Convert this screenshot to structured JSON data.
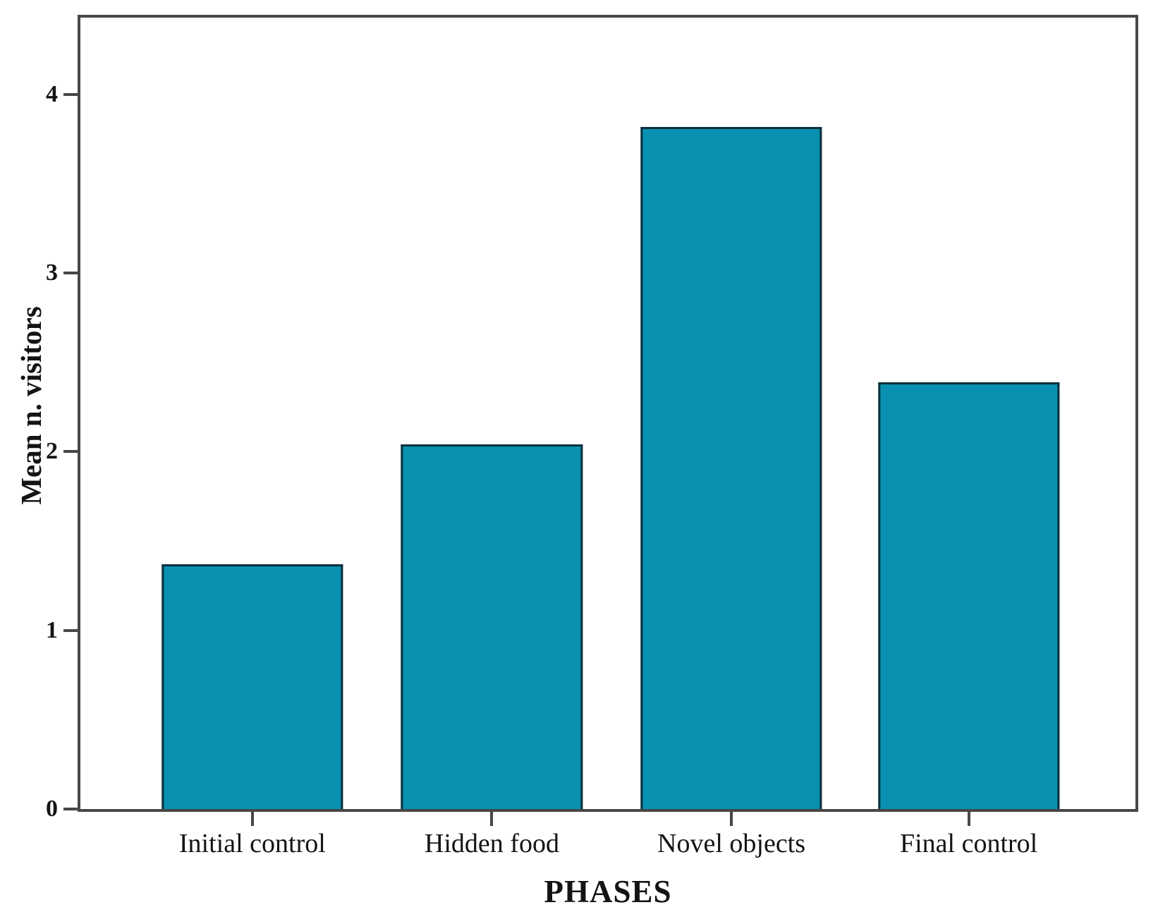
{
  "chart_data": {
    "type": "bar",
    "title": "",
    "categories": [
      "Initial control",
      "Hidden food",
      "Novel objects",
      "Final control"
    ],
    "values": [
      1.37,
      2.04,
      3.82,
      2.39
    ],
    "xlabel": "PHASES",
    "ylabel": "Mean n. visitors",
    "yticks": [
      0,
      1,
      2,
      3,
      4
    ],
    "ylim": [
      0,
      4.43
    ],
    "grid": false,
    "legend": "none",
    "colors": {
      "bar_fill": "#0991b1",
      "bar_border": "#0b2f3b",
      "axis": "#474747",
      "text": "#141414",
      "background": "#ffffff"
    },
    "layout": {
      "centers_pct": [
        16.3,
        39.0,
        61.7,
        84.2
      ],
      "bar_width_pct": 17.2,
      "frame": "full-box"
    }
  }
}
